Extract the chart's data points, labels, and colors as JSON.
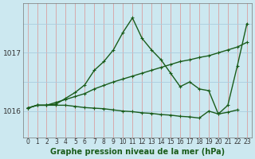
{
  "title": "Graphe pression niveau de la mer (hPa)",
  "bg_color": "#cce8f0",
  "grid_color_h": "#aaccdd",
  "grid_color_v": "#d8a0a0",
  "line_color": "#1a5c1a",
  "x_labels": [
    "0",
    "1",
    "2",
    "3",
    "4",
    "5",
    "6",
    "7",
    "8",
    "9",
    "10",
    "11",
    "12",
    "13",
    "14",
    "15",
    "16",
    "17",
    "18",
    "19",
    "20",
    "21",
    "22",
    "23"
  ],
  "yticks": [
    1016,
    1017
  ],
  "ylim": [
    1015.55,
    1017.85
  ],
  "xlim": [
    -0.5,
    23.5
  ],
  "series1": [
    1016.05,
    1016.1,
    1016.1,
    1016.15,
    1016.2,
    1016.25,
    1016.3,
    1016.38,
    1016.44,
    1016.5,
    1016.55,
    1016.6,
    1016.65,
    1016.7,
    1016.75,
    1016.8,
    1016.85,
    1016.88,
    1016.92,
    1016.95,
    1017.0,
    1017.05,
    1017.1,
    1017.18
  ],
  "series2": [
    1016.05,
    1016.1,
    1016.1,
    1016.12,
    1016.22,
    1016.32,
    1016.45,
    1016.7,
    1016.85,
    1017.05,
    1017.35,
    1017.6,
    1017.25,
    1017.05,
    1016.88,
    1016.65,
    1016.42,
    1016.5,
    1016.38,
    1016.35,
    1015.95,
    1016.1,
    1016.78,
    1017.5
  ],
  "series3": [
    1016.05,
    1016.1,
    1016.1,
    1016.1,
    1016.1,
    1016.08,
    1016.06,
    1016.05,
    1016.04,
    1016.02,
    1016.0,
    1015.99,
    1015.97,
    1015.96,
    1015.94,
    1015.93,
    1015.91,
    1015.9,
    1015.88,
    1016.0,
    1015.95,
    1015.98,
    1016.02,
    null
  ],
  "ylabel_fontsize": 6.5,
  "xlabel_fontsize": 5.5,
  "title_fontsize": 7
}
